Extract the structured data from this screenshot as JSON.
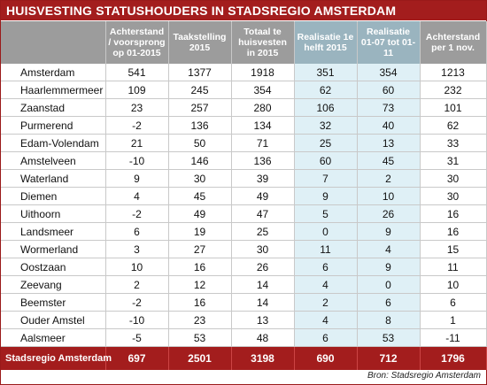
{
  "title": "HUISVESTING STATUSHOUDERS IN STADSREGIO AMSTERDAM",
  "columns": [
    "Achterstand / voorsprong op 01-2015",
    "Taakstelling 2015",
    "Totaal te huisvesten in 2015",
    "Realisatie 1e helft 2015",
    "Realisatie 01-07 tot 01-11",
    "Achterstand per 1 nov."
  ],
  "rows": [
    {
      "name": "Amsterdam",
      "values": [
        "541",
        "1377",
        "1918",
        "351",
        "354",
        "1213"
      ]
    },
    {
      "name": "Haarlemmermeer",
      "values": [
        "109",
        "245",
        "354",
        "62",
        "60",
        "232"
      ]
    },
    {
      "name": "Zaanstad",
      "values": [
        "23",
        "257",
        "280",
        "106",
        "73",
        "101"
      ]
    },
    {
      "name": "Purmerend",
      "values": [
        "-2",
        "136",
        "134",
        "32",
        "40",
        "62"
      ]
    },
    {
      "name": "Edam-Volendam",
      "values": [
        "21",
        "50",
        "71",
        "25",
        "13",
        "33"
      ]
    },
    {
      "name": "Amstelveen",
      "values": [
        "-10",
        "146",
        "136",
        "60",
        "45",
        "31"
      ]
    },
    {
      "name": "Waterland",
      "values": [
        "9",
        "30",
        "39",
        "7",
        "2",
        "30"
      ]
    },
    {
      "name": "Diemen",
      "values": [
        "4",
        "45",
        "49",
        "9",
        "10",
        "30"
      ]
    },
    {
      "name": "Uithoorn",
      "values": [
        "-2",
        "49",
        "47",
        "5",
        "26",
        "16"
      ]
    },
    {
      "name": "Landsmeer",
      "values": [
        "6",
        "19",
        "25",
        "0",
        "9",
        "16"
      ]
    },
    {
      "name": "Wormerland",
      "values": [
        "3",
        "27",
        "30",
        "11",
        "4",
        "15"
      ]
    },
    {
      "name": "Oostzaan",
      "values": [
        "10",
        "16",
        "26",
        "6",
        "9",
        "11"
      ]
    },
    {
      "name": "Zeevang",
      "values": [
        "2",
        "12",
        "14",
        "4",
        "0",
        "10"
      ]
    },
    {
      "name": "Beemster",
      "values": [
        "-2",
        "16",
        "14",
        "2",
        "6",
        "6"
      ]
    },
    {
      "name": "Ouder Amstel",
      "values": [
        "-10",
        "23",
        "13",
        "4",
        "8",
        "1"
      ]
    },
    {
      "name": "Aalsmeer",
      "values": [
        "-5",
        "53",
        "48",
        "6",
        "53",
        "-11"
      ]
    }
  ],
  "total": {
    "name": "Stadsregio Amsterdam",
    "values": [
      "697",
      "2501",
      "3198",
      "690",
      "712",
      "1796"
    ]
  },
  "source": "Bron: Stadsregio Amsterdam",
  "colors": {
    "title_bg": "#a31d1d",
    "header_bg": "#9c9c9c",
    "header_highlight_bg": "#9ab4bf",
    "cell_highlight_bg": "#dff0f6",
    "total_bg": "#a31d1d"
  }
}
